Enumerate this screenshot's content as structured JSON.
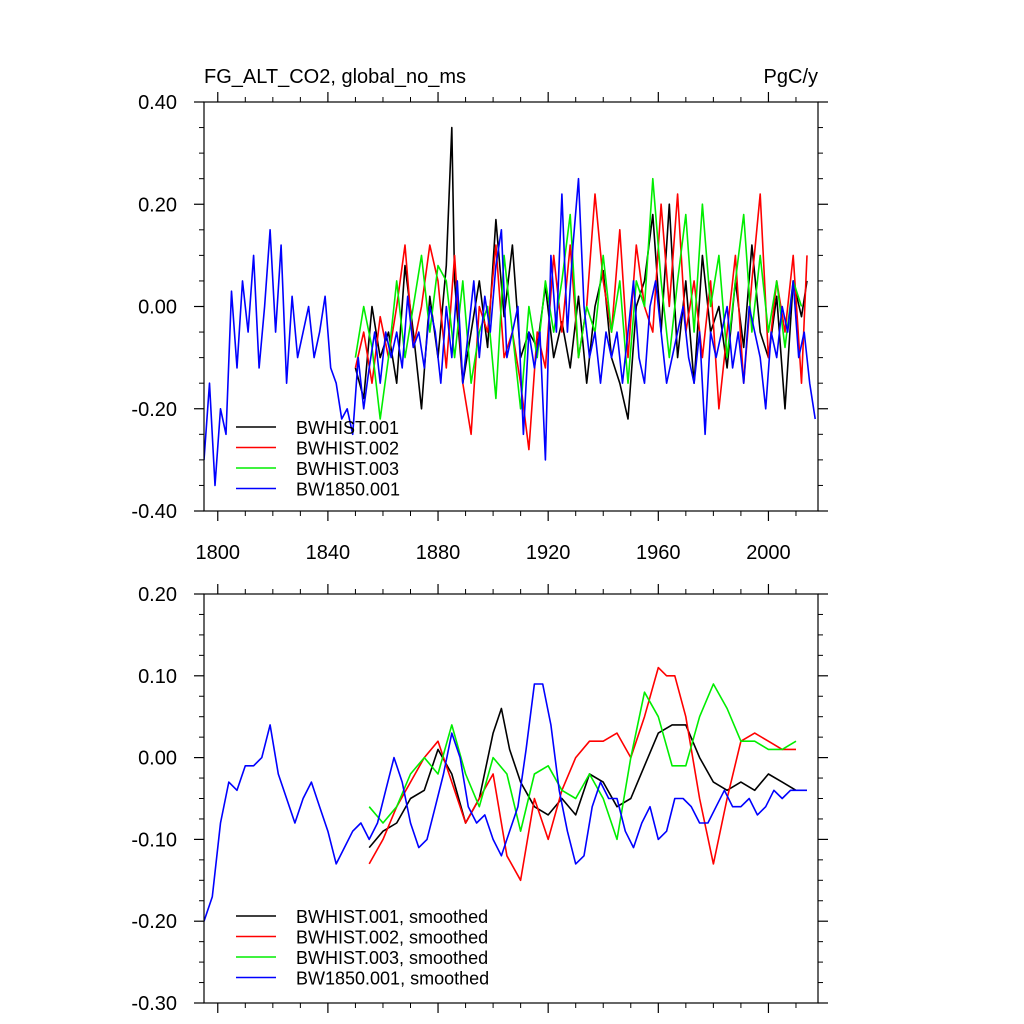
{
  "chart_data": [
    {
      "type": "line",
      "title": "FG_ALT_CO2, global_no_ms",
      "units": "PgC/y",
      "xlabel": "",
      "ylabel": "",
      "xlim": [
        1795,
        2018
      ],
      "ylim": [
        -0.4,
        0.4
      ],
      "x_ticks": [
        1800,
        1840,
        1880,
        1920,
        1960,
        2000
      ],
      "x_tick_labels": [
        "1800",
        "1840",
        "1880",
        "1920",
        "1960",
        "2000"
      ],
      "y_ticks": [
        -0.4,
        -0.2,
        0.0,
        0.2,
        0.4
      ],
      "y_tick_labels": [
        "-0.40",
        "-0.20",
        "0.00",
        "0.20",
        "0.40"
      ],
      "grid": false,
      "legend_position": "bottom-left",
      "series": [
        {
          "name": "BWHIST.001",
          "color": "#000000",
          "x": [
            1850,
            1853,
            1856,
            1859,
            1862,
            1865,
            1868,
            1871,
            1874,
            1877,
            1880,
            1883,
            1885,
            1886,
            1889,
            1892,
            1895,
            1898,
            1901,
            1904,
            1907,
            1910,
            1913,
            1916,
            1919,
            1922,
            1925,
            1928,
            1931,
            1934,
            1937,
            1940,
            1943,
            1946,
            1949,
            1952,
            1955,
            1958,
            1961,
            1964,
            1967,
            1970,
            1973,
            1976,
            1979,
            1982,
            1985,
            1988,
            1991,
            1994,
            1997,
            2000,
            2003,
            2006,
            2009,
            2012,
            2014
          ],
          "y": [
            -0.12,
            -0.18,
            0.0,
            -0.1,
            -0.05,
            -0.15,
            0.08,
            -0.05,
            -0.2,
            0.02,
            -0.1,
            0.08,
            0.35,
            0.05,
            -0.15,
            -0.05,
            0.05,
            -0.08,
            0.17,
            -0.02,
            0.12,
            -0.1,
            -0.05,
            -0.08,
            0.04,
            -0.1,
            -0.03,
            -0.12,
            0.02,
            -0.15,
            0.0,
            0.07,
            -0.1,
            -0.15,
            -0.22,
            0.0,
            0.05,
            0.18,
            -0.05,
            0.2,
            -0.1,
            0.05,
            -0.15,
            0.1,
            -0.05,
            0.0,
            -0.12,
            0.05,
            -0.08,
            0.12,
            -0.05,
            -0.1,
            0.02,
            -0.2,
            0.05,
            -0.02,
            0.05
          ]
        },
        {
          "name": "BWHIST.002",
          "color": "#ff0000",
          "x": [
            1850,
            1853,
            1856,
            1859,
            1862,
            1865,
            1868,
            1871,
            1874,
            1877,
            1880,
            1883,
            1886,
            1889,
            1892,
            1895,
            1898,
            1901,
            1904,
            1907,
            1910,
            1913,
            1916,
            1919,
            1922,
            1925,
            1928,
            1931,
            1934,
            1937,
            1940,
            1943,
            1946,
            1949,
            1952,
            1955,
            1958,
            1961,
            1964,
            1967,
            1970,
            1973,
            1976,
            1979,
            1982,
            1985,
            1988,
            1991,
            1994,
            1997,
            2000,
            2003,
            2006,
            2009,
            2012,
            2014
          ],
          "y": [
            -0.12,
            -0.05,
            -0.15,
            -0.02,
            -0.1,
            0.0,
            0.12,
            -0.08,
            0.0,
            0.12,
            0.05,
            -0.12,
            0.1,
            -0.15,
            -0.25,
            0.0,
            -0.05,
            0.12,
            -0.1,
            -0.05,
            -0.15,
            -0.28,
            -0.05,
            -0.12,
            0.1,
            -0.05,
            0.12,
            -0.1,
            0.0,
            0.22,
            0.05,
            -0.05,
            0.15,
            -0.1,
            0.12,
            0.0,
            -0.05,
            0.2,
            0.0,
            0.22,
            -0.05,
            0.05,
            -0.1,
            0.05,
            -0.2,
            -0.05,
            0.1,
            -0.15,
            0.05,
            0.22,
            -0.1,
            0.05,
            -0.05,
            0.1,
            -0.15,
            0.1
          ]
        },
        {
          "name": "BWHIST.003",
          "color": "#00ee00",
          "x": [
            1850,
            1853,
            1856,
            1859,
            1862,
            1865,
            1868,
            1871,
            1874,
            1877,
            1880,
            1883,
            1886,
            1889,
            1892,
            1895,
            1898,
            1901,
            1904,
            1907,
            1910,
            1913,
            1916,
            1919,
            1922,
            1925,
            1928,
            1931,
            1934,
            1937,
            1940,
            1943,
            1946,
            1949,
            1952,
            1955,
            1958,
            1961,
            1964,
            1967,
            1970,
            1973,
            1976,
            1979,
            1982,
            1985,
            1988,
            1991,
            1994,
            1997,
            2000,
            2003,
            2006,
            2009,
            2012
          ],
          "y": [
            -0.1,
            0.0,
            -0.08,
            -0.22,
            -0.1,
            0.05,
            -0.1,
            0.0,
            0.1,
            -0.05,
            0.08,
            0.05,
            -0.1,
            0.05,
            -0.15,
            -0.05,
            0.0,
            -0.18,
            0.1,
            -0.05,
            -0.2,
            0.0,
            -0.1,
            0.05,
            -0.05,
            0.05,
            0.18,
            -0.1,
            0.0,
            -0.05,
            0.1,
            -0.05,
            0.05,
            -0.15,
            0.05,
            0.0,
            0.25,
            0.05,
            -0.1,
            0.05,
            0.18,
            -0.05,
            0.2,
            0.0,
            0.1,
            -0.1,
            0.05,
            0.18,
            -0.05,
            0.1,
            -0.05,
            0.05,
            -0.08,
            0.05,
            0.0
          ]
        },
        {
          "name": "BW1850.001",
          "color": "#0000ff",
          "x": [
            1795,
            1797,
            1799,
            1801,
            1803,
            1805,
            1807,
            1809,
            1811,
            1813,
            1815,
            1817,
            1819,
            1821,
            1823,
            1825,
            1827,
            1829,
            1831,
            1833,
            1835,
            1837,
            1839,
            1841,
            1843,
            1845,
            1847,
            1849,
            1851,
            1853,
            1855,
            1857,
            1859,
            1861,
            1863,
            1865,
            1867,
            1869,
            1871,
            1873,
            1875,
            1877,
            1879,
            1881,
            1883,
            1885,
            1887,
            1889,
            1891,
            1893,
            1895,
            1897,
            1899,
            1901,
            1903,
            1905,
            1907,
            1909,
            1911,
            1913,
            1915,
            1917,
            1919,
            1921,
            1923,
            1925,
            1927,
            1929,
            1931,
            1933,
            1935,
            1937,
            1939,
            1941,
            1943,
            1945,
            1947,
            1949,
            1951,
            1953,
            1955,
            1957,
            1959,
            1961,
            1963,
            1965,
            1967,
            1969,
            1971,
            1973,
            1975,
            1977,
            1979,
            1981,
            1983,
            1985,
            1987,
            1989,
            1991,
            1993,
            1995,
            1997,
            1999,
            2001,
            2003,
            2005,
            2007,
            2009,
            2011,
            2013,
            2015,
            2017
          ],
          "y": [
            -0.3,
            -0.15,
            -0.35,
            -0.2,
            -0.25,
            0.03,
            -0.12,
            0.05,
            -0.05,
            0.1,
            -0.12,
            0.0,
            0.15,
            -0.05,
            0.12,
            -0.15,
            0.02,
            -0.1,
            -0.05,
            0.0,
            -0.1,
            -0.05,
            0.02,
            -0.12,
            -0.15,
            -0.22,
            -0.2,
            -0.25,
            -0.1,
            -0.2,
            -0.12,
            -0.05,
            -0.15,
            -0.05,
            -0.1,
            -0.05,
            -0.12,
            0.02,
            -0.08,
            -0.05,
            -0.12,
            0.0,
            -0.05,
            -0.15,
            0.0,
            -0.1,
            0.05,
            -0.15,
            -0.05,
            0.05,
            -0.1,
            0.02,
            -0.05,
            0.08,
            0.15,
            -0.1,
            -0.05,
            0.0,
            -0.25,
            -0.05,
            -0.12,
            -0.05,
            -0.3,
            0.1,
            -0.05,
            0.22,
            -0.05,
            0.12,
            0.25,
            0.0,
            -0.1,
            -0.05,
            -0.15,
            -0.05,
            -0.1,
            -0.05,
            -0.15,
            -0.05,
            0.05,
            -0.1,
            -0.15,
            0.0,
            0.05,
            -0.05,
            -0.15,
            -0.1,
            -0.05,
            0.0,
            -0.1,
            -0.15,
            -0.05,
            -0.25,
            -0.05,
            -0.1,
            -0.05,
            0.0,
            -0.12,
            -0.05,
            -0.15,
            0.0,
            -0.05,
            -0.1,
            -0.2,
            -0.05,
            -0.1,
            0.0,
            -0.05,
            0.05,
            -0.1,
            -0.05,
            -0.15,
            -0.22
          ]
        }
      ]
    },
    {
      "type": "line",
      "title": "",
      "xlabel": "",
      "ylabel": "",
      "xlim": [
        1795,
        2018
      ],
      "ylim": [
        -0.3,
        0.2
      ],
      "x_ticks": [
        1800,
        1840,
        1880,
        1920,
        1960,
        2000
      ],
      "y_ticks": [
        -0.3,
        -0.2,
        -0.1,
        0.0,
        0.1,
        0.2
      ],
      "y_tick_labels": [
        "-0.30",
        "-0.20",
        "-0.10",
        "0.00",
        "0.10",
        "0.20"
      ],
      "grid": false,
      "legend_position": "bottom-left",
      "series": [
        {
          "name": "BWHIST.001, smoothed",
          "color": "#000000",
          "x": [
            1855,
            1860,
            1865,
            1870,
            1875,
            1880,
            1885,
            1890,
            1895,
            1900,
            1903,
            1906,
            1910,
            1915,
            1920,
            1925,
            1930,
            1935,
            1940,
            1945,
            1950,
            1955,
            1960,
            1965,
            1970,
            1975,
            1980,
            1985,
            1990,
            1995,
            2000,
            2005,
            2010
          ],
          "y": [
            -0.11,
            -0.09,
            -0.08,
            -0.05,
            -0.04,
            0.01,
            -0.02,
            -0.08,
            -0.05,
            0.03,
            0.06,
            0.01,
            -0.03,
            -0.06,
            -0.07,
            -0.05,
            -0.07,
            -0.02,
            -0.03,
            -0.06,
            -0.05,
            -0.01,
            0.03,
            0.04,
            0.04,
            0.0,
            -0.03,
            -0.04,
            -0.03,
            -0.04,
            -0.02,
            -0.03,
            -0.04
          ]
        },
        {
          "name": "BWHIST.002, smoothed",
          "color": "#ff0000",
          "x": [
            1855,
            1860,
            1865,
            1870,
            1875,
            1880,
            1885,
            1890,
            1895,
            1900,
            1905,
            1910,
            1915,
            1920,
            1925,
            1930,
            1935,
            1940,
            1945,
            1950,
            1955,
            1960,
            1963,
            1966,
            1970,
            1975,
            1980,
            1985,
            1990,
            1995,
            2000,
            2005,
            2010
          ],
          "y": [
            -0.13,
            -0.1,
            -0.06,
            -0.03,
            0.0,
            0.02,
            -0.03,
            -0.08,
            -0.05,
            -0.02,
            -0.12,
            -0.15,
            -0.05,
            -0.1,
            -0.04,
            0.0,
            0.02,
            0.02,
            0.03,
            0.0,
            0.05,
            0.11,
            0.1,
            0.1,
            0.05,
            -0.05,
            -0.13,
            -0.05,
            0.02,
            0.03,
            0.02,
            0.01,
            0.01
          ]
        },
        {
          "name": "BWHIST.003, smoothed",
          "color": "#00ee00",
          "x": [
            1855,
            1860,
            1865,
            1870,
            1875,
            1880,
            1885,
            1890,
            1895,
            1900,
            1905,
            1910,
            1915,
            1920,
            1925,
            1930,
            1935,
            1940,
            1945,
            1950,
            1955,
            1960,
            1965,
            1970,
            1975,
            1980,
            1985,
            1990,
            1995,
            2000,
            2005,
            2010
          ],
          "y": [
            -0.06,
            -0.08,
            -0.06,
            -0.02,
            0.0,
            -0.02,
            0.04,
            -0.02,
            -0.06,
            0.0,
            -0.02,
            -0.09,
            -0.02,
            -0.01,
            -0.04,
            -0.05,
            -0.02,
            -0.05,
            -0.1,
            0.0,
            0.08,
            0.05,
            -0.01,
            -0.01,
            0.05,
            0.09,
            0.06,
            0.02,
            0.02,
            0.01,
            0.01,
            0.02
          ]
        },
        {
          "name": "BW1850.001, smoothed",
          "color": "#0000ff",
          "x": [
            1795,
            1798,
            1801,
            1804,
            1807,
            1810,
            1813,
            1816,
            1819,
            1822,
            1825,
            1828,
            1831,
            1834,
            1837,
            1840,
            1843,
            1846,
            1849,
            1852,
            1855,
            1858,
            1861,
            1864,
            1867,
            1870,
            1873,
            1876,
            1879,
            1882,
            1885,
            1888,
            1891,
            1894,
            1897,
            1900,
            1903,
            1906,
            1909,
            1912,
            1915,
            1918,
            1921,
            1924,
            1927,
            1930,
            1933,
            1936,
            1939,
            1942,
            1945,
            1948,
            1951,
            1954,
            1957,
            1960,
            1963,
            1966,
            1969,
            1972,
            1975,
            1978,
            1981,
            1984,
            1987,
            1990,
            1993,
            1996,
            1999,
            2002,
            2005,
            2008,
            2011,
            2014
          ],
          "y": [
            -0.2,
            -0.17,
            -0.08,
            -0.03,
            -0.04,
            -0.01,
            -0.01,
            0.0,
            0.04,
            -0.02,
            -0.05,
            -0.08,
            -0.05,
            -0.03,
            -0.06,
            -0.09,
            -0.13,
            -0.11,
            -0.09,
            -0.08,
            -0.1,
            -0.08,
            -0.04,
            0.0,
            -0.03,
            -0.08,
            -0.11,
            -0.1,
            -0.06,
            -0.02,
            0.03,
            0.0,
            -0.06,
            -0.08,
            -0.07,
            -0.1,
            -0.12,
            -0.09,
            -0.06,
            0.01,
            0.09,
            0.09,
            0.04,
            -0.04,
            -0.09,
            -0.13,
            -0.12,
            -0.06,
            -0.03,
            -0.05,
            -0.05,
            -0.09,
            -0.11,
            -0.08,
            -0.06,
            -0.1,
            -0.09,
            -0.05,
            -0.05,
            -0.06,
            -0.08,
            -0.08,
            -0.06,
            -0.04,
            -0.06,
            -0.06,
            -0.05,
            -0.07,
            -0.06,
            -0.04,
            -0.05,
            -0.04,
            -0.04,
            -0.04
          ]
        }
      ]
    }
  ]
}
